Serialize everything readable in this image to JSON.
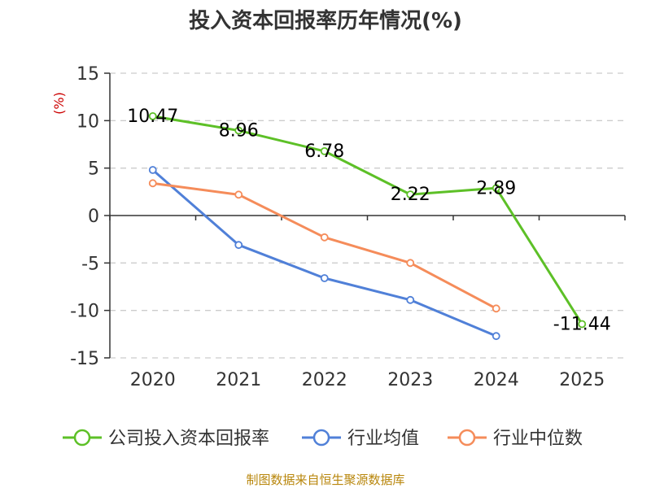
{
  "chart_data": {
    "type": "line",
    "title": "投入资本回报率历年情况(%)",
    "ylabel": "(%)",
    "categories": [
      "2020",
      "2021",
      "2022",
      "2023",
      "2024",
      "2025"
    ],
    "ylim": [
      -15,
      15
    ],
    "yticks": [
      15,
      10,
      5,
      0,
      -5,
      -10,
      -15
    ],
    "grid": true,
    "legend_position": "bottom",
    "series": [
      {
        "name": "公司投入资本回报率",
        "color": "#5dc027",
        "values": [
          10.47,
          8.96,
          6.78,
          2.22,
          2.89,
          -11.44
        ],
        "labels": [
          "10.47",
          "8.96",
          "6.78",
          "2.22",
          "2.89",
          "-11.44"
        ]
      },
      {
        "name": "行业均值",
        "color": "#5080d8",
        "values": [
          4.8,
          -3.1,
          -6.6,
          -8.9,
          -12.7,
          null
        ]
      },
      {
        "name": "行业中位数",
        "color": "#f58c5a",
        "values": [
          3.4,
          2.2,
          -2.3,
          -5.0,
          -9.8,
          null
        ]
      }
    ],
    "source": "制图数据来自恒生聚源数据库"
  }
}
